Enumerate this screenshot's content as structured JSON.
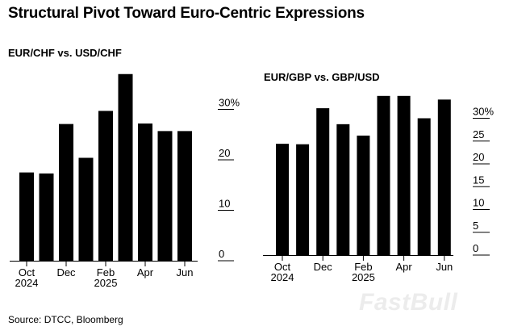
{
  "title": "Structural Pivot Toward Euro-Centric Expressions",
  "source": "Source: DTCC, Bloomberg",
  "watermark": "FastBull",
  "colors": {
    "bar": "#000000",
    "grid": "#000000"
  },
  "chart_data": [
    {
      "type": "bar",
      "title": "EUR/CHF vs. USD/CHF",
      "categories": [
        "Oct 2024",
        "Nov 2024",
        "Dec 2024",
        "Jan 2025",
        "Feb 2025",
        "Mar 2025",
        "Apr 2025",
        "May 2025",
        "Jun 2025"
      ],
      "values": [
        17.5,
        17.3,
        27.1,
        20.4,
        29.7,
        37.0,
        27.2,
        25.7,
        25.7
      ],
      "x_tick_labels": [
        {
          "index": 0,
          "line1": "Oct",
          "line2": "2024"
        },
        {
          "index": 2,
          "line1": "Dec",
          "line2": ""
        },
        {
          "index": 4,
          "line1": "Feb",
          "line2": "2025"
        },
        {
          "index": 6,
          "line1": "Apr",
          "line2": ""
        },
        {
          "index": 8,
          "line1": "Jun",
          "line2": ""
        }
      ],
      "y_ticks": [
        {
          "value": 0,
          "label": "0"
        },
        {
          "value": 10,
          "label": "10"
        },
        {
          "value": 20,
          "label": "20"
        },
        {
          "value": 30,
          "label": "30%"
        }
      ],
      "ylim": [
        0,
        38
      ],
      "xlabel": "",
      "ylabel": "",
      "y_axis_side": "right",
      "grid": false
    },
    {
      "type": "bar",
      "title": "EUR/GBP vs. GBP/USD",
      "categories": [
        "Oct 2024",
        "Nov 2024",
        "Dec 2024",
        "Jan 2025",
        "Feb 2025",
        "Mar 2025",
        "Apr 2025",
        "May 2025",
        "Jun 2025"
      ],
      "values": [
        24.4,
        24.3,
        32.2,
        28.7,
        26.2,
        34.9,
        34.9,
        30.0,
        34.1
      ],
      "x_tick_labels": [
        {
          "index": 0,
          "line1": "Oct",
          "line2": "2024"
        },
        {
          "index": 2,
          "line1": "Dec",
          "line2": ""
        },
        {
          "index": 4,
          "line1": "Feb",
          "line2": "2025"
        },
        {
          "index": 6,
          "line1": "Apr",
          "line2": ""
        },
        {
          "index": 8,
          "line1": "Jun",
          "line2": ""
        }
      ],
      "y_ticks": [
        {
          "value": 0,
          "label": "0"
        },
        {
          "value": 5,
          "label": "5"
        },
        {
          "value": 10,
          "label": "10"
        },
        {
          "value": 15,
          "label": "15"
        },
        {
          "value": 20,
          "label": "20"
        },
        {
          "value": 25,
          "label": "25"
        },
        {
          "value": 30,
          "label": "30%"
        }
      ],
      "ylim": [
        0,
        36
      ],
      "xlabel": "",
      "ylabel": "",
      "y_axis_side": "right",
      "grid": false
    }
  ]
}
